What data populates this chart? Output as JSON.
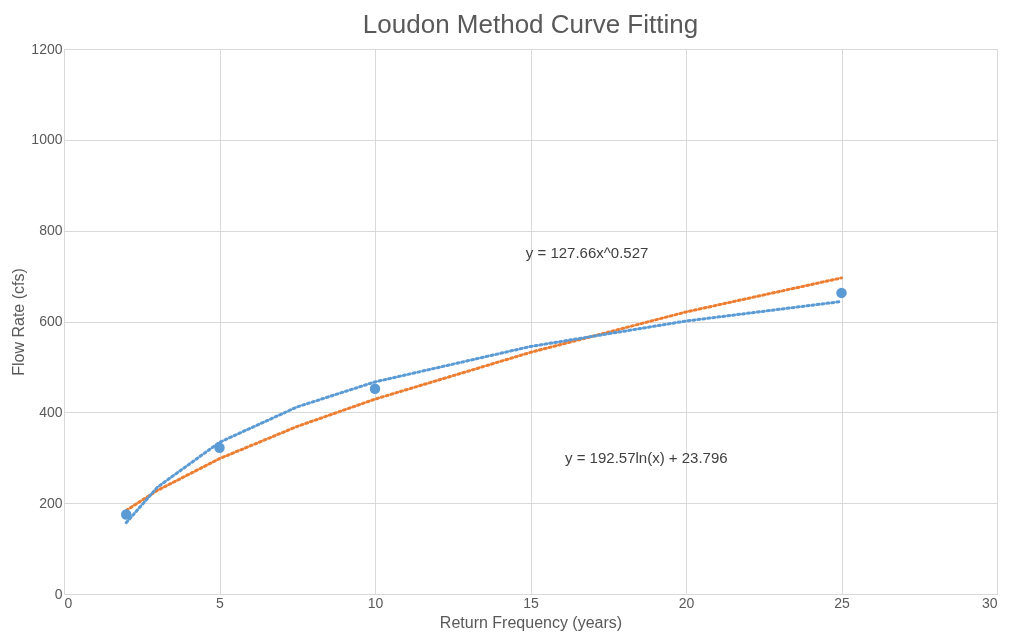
{
  "chart_data": {
    "type": "scatter",
    "title": "Loudon Method Curve Fitting",
    "xlabel": "Return Frequency (years)",
    "ylabel": "Flow Rate (cfs)",
    "xlim": [
      0,
      30
    ],
    "xticks": [
      0,
      5,
      10,
      15,
      20,
      25,
      30
    ],
    "ylim": [
      0,
      1200
    ],
    "yticks": [
      0,
      200,
      400,
      600,
      800,
      1000,
      1200
    ],
    "grid": true,
    "legend": false,
    "annotations": [
      "y = 127.66x^0.527",
      "y = 192.57ln(x) + 23.796"
    ],
    "series": [
      {
        "type": "line",
        "color": "#ed7d31",
        "line_style": "dotted",
        "x": [
          2,
          3,
          5,
          7.5,
          10,
          15,
          20,
          25
        ],
        "values": [
          184,
          228,
          298,
          369,
          429,
          532,
          621,
          696
        ]
      },
      {
        "type": "line",
        "color": "#5b9bd5",
        "line_style": "dotted",
        "x": [
          2,
          3,
          5,
          7.5,
          10,
          15,
          20,
          25
        ],
        "values": [
          157,
          235,
          334,
          412,
          467,
          545,
          601,
          644
        ]
      },
      {
        "type": "scatter",
        "color": "#5b9bd5",
        "marker": "circle",
        "x": [
          2,
          5,
          10,
          25
        ],
        "values": [
          175,
          322,
          452,
          663
        ]
      }
    ]
  }
}
